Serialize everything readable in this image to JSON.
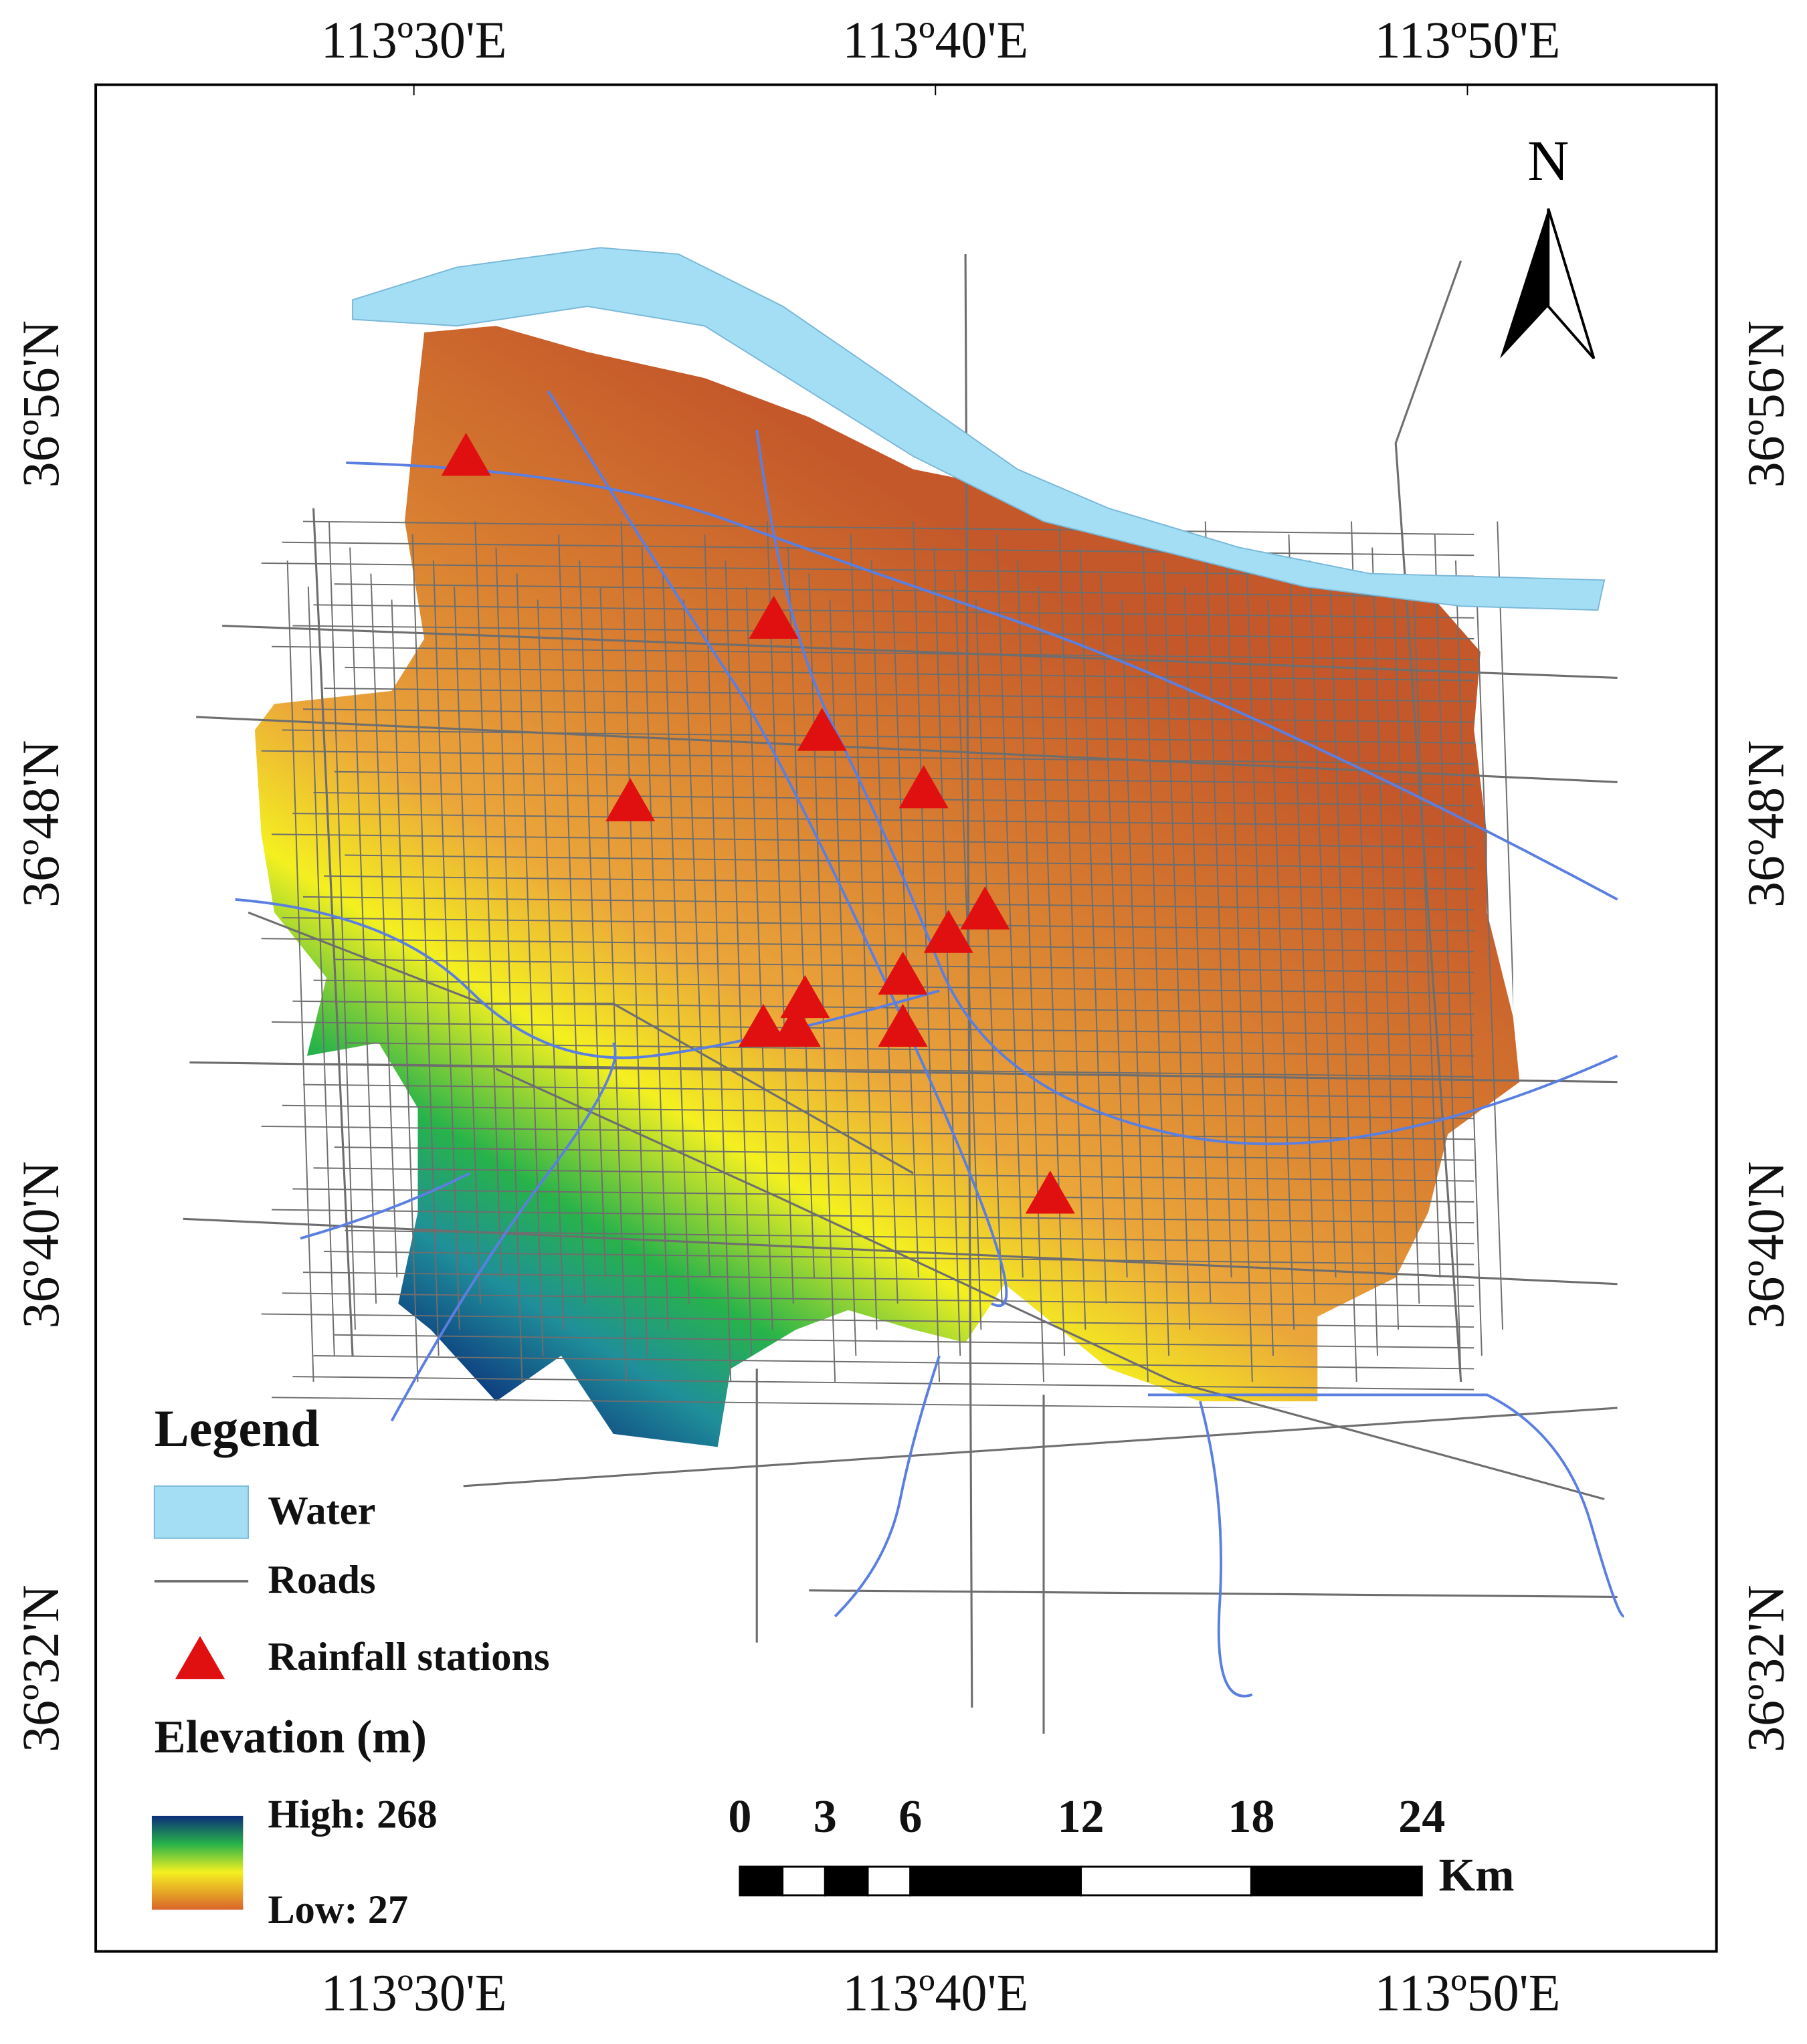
{
  "map": {
    "lon_labels": [
      "113º30'E",
      "113º40'E",
      "113º50'E"
    ],
    "lat_labels": [
      "36º56'N",
      "36º48'N",
      "36º40'N",
      "36º32'N"
    ],
    "north": "N",
    "legend": {
      "title": "Legend",
      "water": "Water",
      "roads": "Roads",
      "stations": "Rainfall stations",
      "elevation_title": "Elevation (m)",
      "high": "High: 268",
      "low": "Low: 27"
    },
    "scale_bar": {
      "ticks": [
        0,
        3,
        6,
        12,
        18,
        24
      ],
      "unit": "Km"
    }
  }
}
